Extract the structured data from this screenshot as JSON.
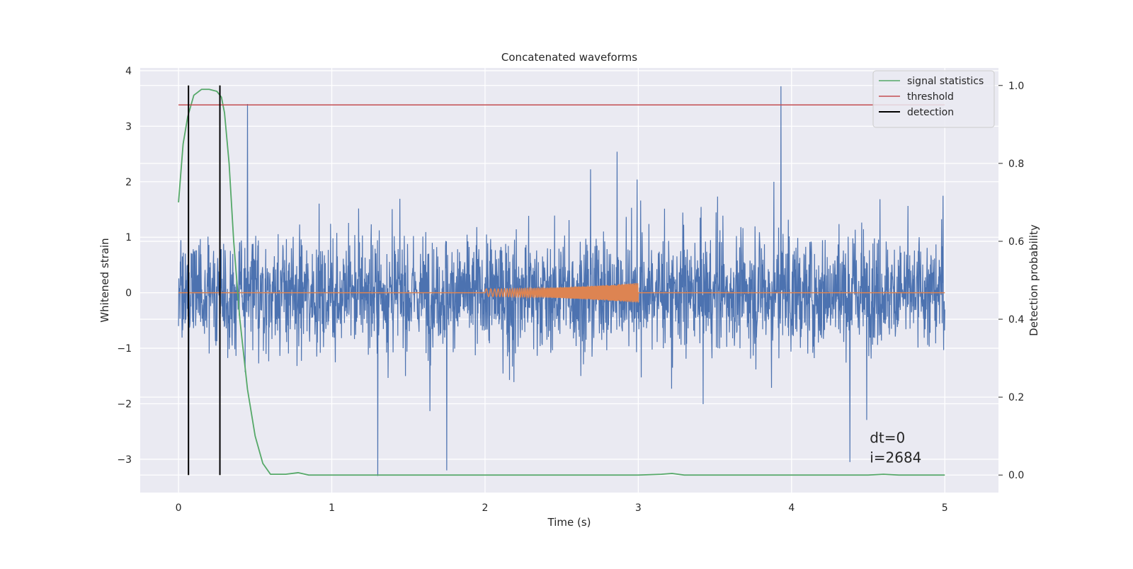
{
  "chart_data": {
    "type": "line",
    "title": "Concatenated waveforms",
    "xlabel": "Time (s)",
    "ylabel": "Whitened strain",
    "y2label": "Detection probability",
    "xlim": [
      -0.25,
      5.35
    ],
    "ylim": [
      -3.6,
      4.05
    ],
    "y2lim": [
      -0.045,
      1.045
    ],
    "xticks": [
      0,
      1,
      2,
      3,
      4,
      5
    ],
    "xtick_labels": [
      "0",
      "1",
      "2",
      "3",
      "4",
      "5"
    ],
    "yticks": [
      -3,
      -2,
      -1,
      0,
      1,
      2,
      3,
      4
    ],
    "ytick_labels": [
      "−3",
      "−2",
      "−1",
      "0",
      "1",
      "2",
      "3",
      "4"
    ],
    "y2ticks": [
      0.0,
      0.2,
      0.4,
      0.6,
      0.8,
      1.0
    ],
    "y2tick_labels": [
      "0.0",
      "0.2",
      "0.4",
      "0.6",
      "0.8",
      "1.0"
    ],
    "grid": true,
    "legend_position": "top-right",
    "annotations": [
      "dt=0",
      "i=2684"
    ],
    "series": [
      {
        "name": "",
        "axis": "left",
        "color": "#4c72b0",
        "description": "noisy whitened strain, 0 to 5 s",
        "x_range": [
          0,
          5
        ],
        "amplitude_envelope": 2.2,
        "peaks": [
          {
            "x": 0.45,
            "y": 3.4
          },
          {
            "x": 1.3,
            "y": -3.3
          },
          {
            "x": 1.75,
            "y": -3.2
          },
          {
            "x": 3.93,
            "y": 3.72
          },
          {
            "x": 4.38,
            "y": -3.05
          }
        ]
      },
      {
        "name": "",
        "axis": "left",
        "color": "#dd8452",
        "description": "injected chirp signal, 2 to 3 s, growing amplitude",
        "x_range": [
          2,
          3
        ],
        "start_amplitude": 0.07,
        "end_amplitude": 0.18
      },
      {
        "name": "signal statistics",
        "axis": "right",
        "color": "#55a868",
        "x": [
          0,
          0.03,
          0.06,
          0.1,
          0.15,
          0.2,
          0.25,
          0.28,
          0.3,
          0.33,
          0.36,
          0.4,
          0.45,
          0.5,
          0.55,
          0.6,
          0.7,
          0.78,
          0.85,
          1.0,
          2.0,
          3.0,
          3.15,
          3.22,
          3.3,
          4.5,
          4.6,
          4.7,
          5.0
        ],
        "y": [
          0.7,
          0.85,
          0.92,
          0.975,
          0.99,
          0.99,
          0.985,
          0.97,
          0.93,
          0.8,
          0.6,
          0.4,
          0.22,
          0.1,
          0.03,
          0.002,
          0.002,
          0.006,
          0.0,
          0.0,
          0.0,
          0.0,
          0.002,
          0.004,
          0.0,
          0.0,
          0.002,
          0.0,
          0.0
        ]
      },
      {
        "name": "threshold",
        "axis": "right",
        "color": "#c44e52",
        "x": [
          0,
          5
        ],
        "y": [
          0.95,
          0.95
        ]
      },
      {
        "name": "detection",
        "axis": "right",
        "color": "#000000",
        "type": "vlines",
        "x": [
          0.065,
          0.27
        ],
        "y_range": [
          0.0,
          1.0
        ]
      }
    ]
  }
}
